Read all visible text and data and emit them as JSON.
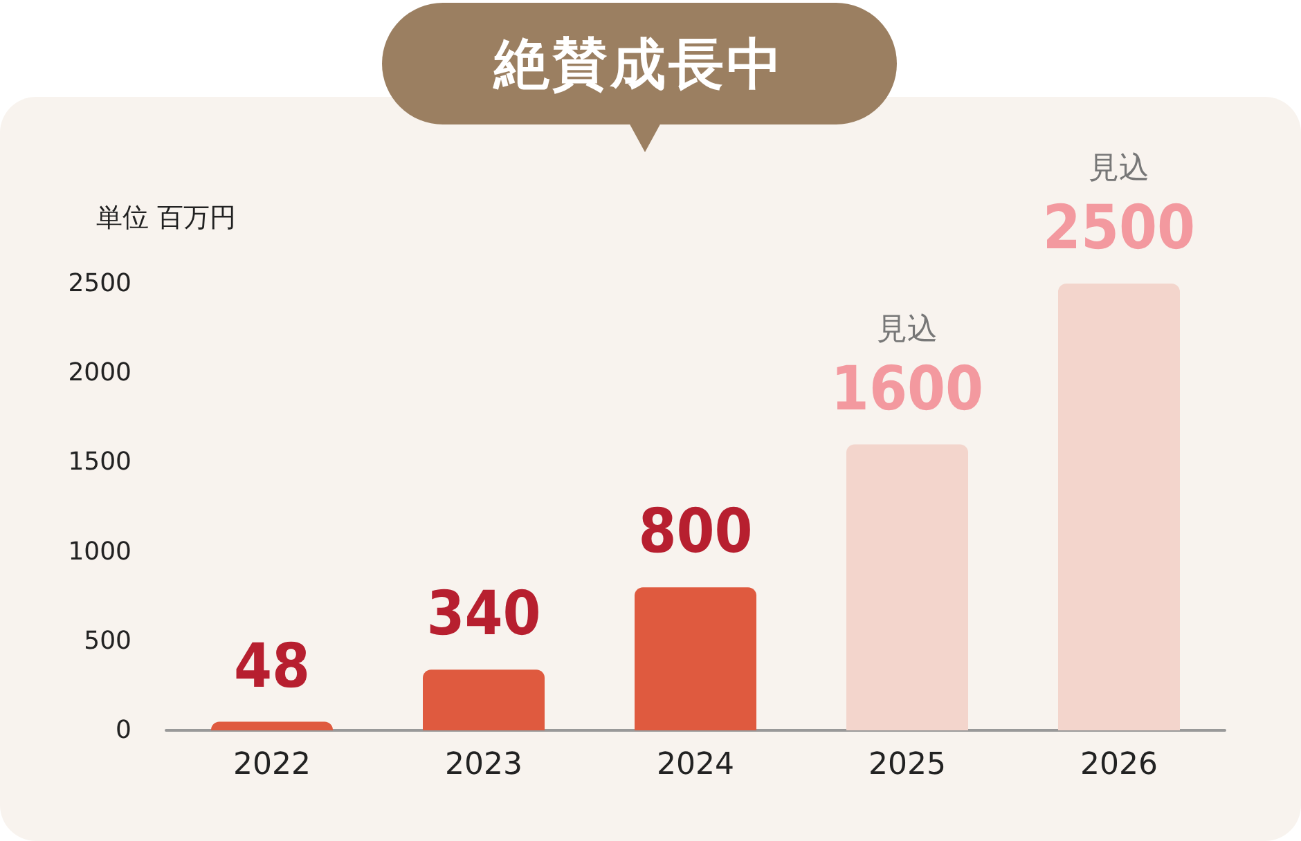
{
  "chart_data": {
    "type": "bar",
    "title": "絶賛成長中",
    "ylabel": "単位 百万円",
    "categories": [
      "2022",
      "2023",
      "2024",
      "2025",
      "2026"
    ],
    "values": [
      48,
      340,
      800,
      1600,
      2500
    ],
    "colors": [
      "#df5a3f",
      "#df5a3f",
      "#df5a3f",
      "#f3d5cc",
      "#f3d5cc"
    ],
    "ylim": [
      0,
      2500
    ],
    "yticks": [
      0,
      500,
      1000,
      1500,
      2000,
      2500
    ],
    "grid": false,
    "data_labels": true,
    "annotations": [
      "見込",
      "見込"
    ]
  }
}
